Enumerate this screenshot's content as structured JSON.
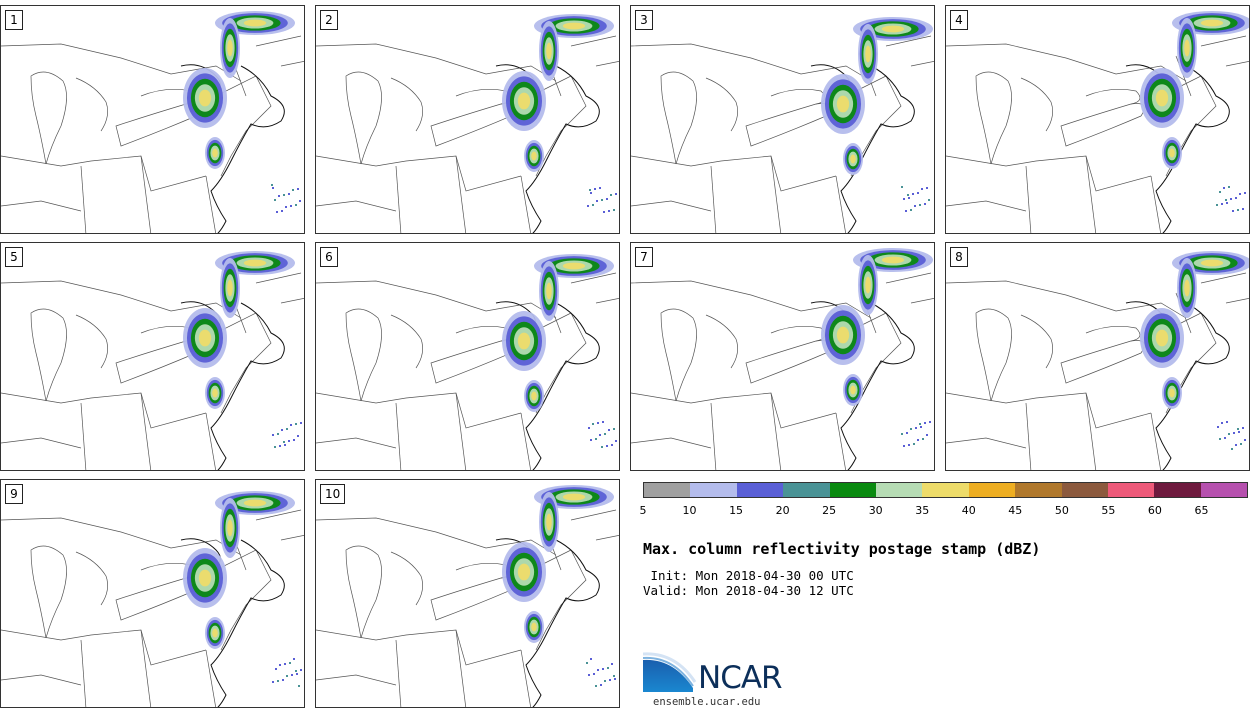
{
  "stamps": [
    {
      "label": "1"
    },
    {
      "label": "2"
    },
    {
      "label": "3"
    },
    {
      "label": "4"
    },
    {
      "label": "5"
    },
    {
      "label": "6"
    },
    {
      "label": "7"
    },
    {
      "label": "8"
    },
    {
      "label": "9"
    },
    {
      "label": "10"
    }
  ],
  "colorbar": {
    "colors": [
      "#a0a0a0",
      "#b4bcec",
      "#5a5fd6",
      "#4a9396",
      "#0a8a10",
      "#b6dcb4",
      "#eedc6a",
      "#eeae22",
      "#b0782c",
      "#8c5a3e",
      "#ee5a7a",
      "#6e1a3e",
      "#b650ae"
    ],
    "ticks": [
      "5",
      "10",
      "15",
      "20",
      "25",
      "30",
      "35",
      "40",
      "45",
      "50",
      "55",
      "60",
      "65"
    ]
  },
  "title": "Max. column reflectivity postage stamp (dBZ)",
  "init": " Init: Mon 2018-04-30 00 UTC",
  "valid": "Valid: Mon 2018-04-30 12 UTC",
  "logo": {
    "text": "NCAR",
    "site": "ensemble.ucar.edu"
  }
}
